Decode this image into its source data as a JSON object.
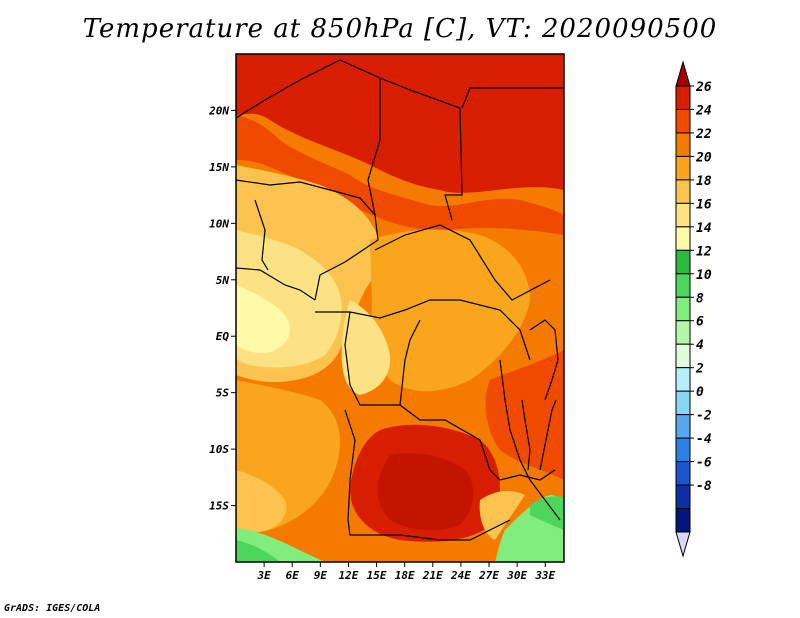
{
  "title": "Temperature at 850hPa [C], VT: 2020090500",
  "credit": "GrADS: IGES/COLA",
  "map": {
    "lat_labels": [
      "20N",
      "15N",
      "10N",
      "5N",
      "EQ",
      "5S",
      "10S",
      "15S"
    ],
    "lat_values": [
      20,
      15,
      10,
      5,
      0,
      -5,
      -10,
      -15
    ],
    "lon_labels": [
      "3E",
      "6E",
      "9E",
      "12E",
      "15E",
      "18E",
      "21E",
      "24E",
      "27E",
      "30E",
      "33E"
    ],
    "lon_values": [
      3,
      6,
      9,
      12,
      15,
      18,
      21,
      24,
      27,
      30,
      33
    ],
    "lat_range": [
      -20,
      25
    ],
    "lon_range": [
      0,
      35
    ]
  },
  "colorbar": {
    "labels": [
      "26",
      "24",
      "22",
      "20",
      "18",
      "16",
      "14",
      "12",
      "10",
      "8",
      "6",
      "4",
      "2",
      "0",
      "-2",
      "-4",
      "-6",
      "-8"
    ],
    "colors": [
      "#a50000",
      "#d81e00",
      "#f04a00",
      "#f57b00",
      "#faa61c",
      "#fcc34f",
      "#fde285",
      "#fefaa8",
      "#2db842",
      "#4cd65c",
      "#81ed7d",
      "#b3f7a8",
      "#e1fbdd",
      "#b5f0fa",
      "#8ad4f5",
      "#5aa8ec",
      "#2f7ee4",
      "#1a55cc",
      "#0d2fa5",
      "#06157a",
      "#dcd8f4"
    ]
  }
}
